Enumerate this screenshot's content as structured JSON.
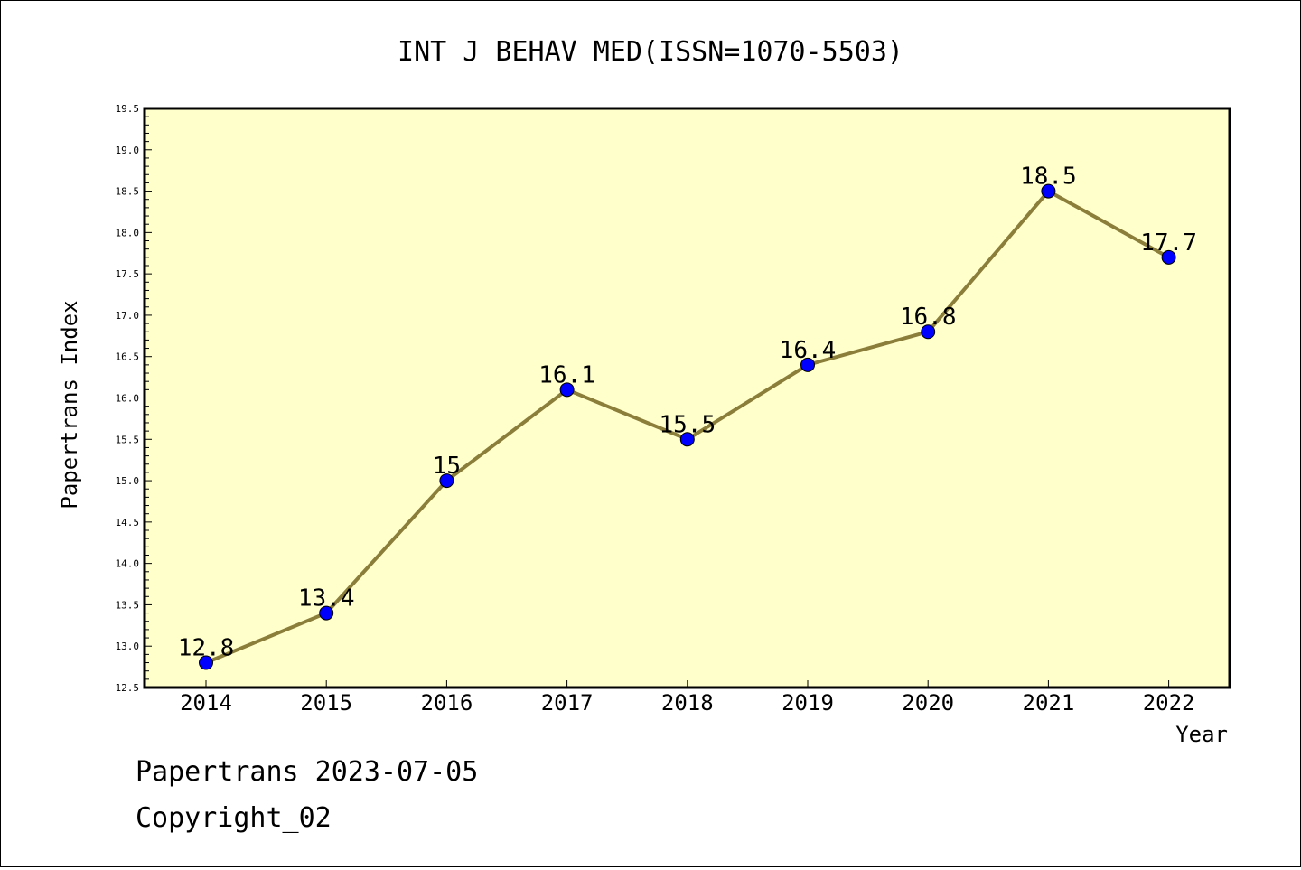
{
  "chart_data": {
    "type": "line",
    "title": "INT J BEHAV MED(ISSN=1070-5503)",
    "xlabel": "Year",
    "ylabel": "Papertrans Index",
    "x": [
      "2014",
      "2015",
      "2016",
      "2017",
      "2018",
      "2019",
      "2020",
      "2021",
      "2022"
    ],
    "series": [
      {
        "values": [
          12.8,
          13.4,
          15.0,
          16.1,
          15.5,
          16.4,
          16.8,
          18.5,
          17.7
        ],
        "labels": [
          "12.8",
          "13.4",
          "15",
          "16.1",
          "15.5",
          "16.4",
          "16.8",
          "18.5",
          "17.7"
        ]
      }
    ],
    "ylim": [
      12.5,
      19.5
    ],
    "y_ticks": [
      "12.5",
      "13.0",
      "13.5",
      "14.0",
      "14.5",
      "15.0",
      "15.5",
      "16.0",
      "16.5",
      "17.0",
      "17.5",
      "18.0",
      "18.5",
      "19.0",
      "19.5"
    ],
    "y_minor_step": 0.1,
    "grid": false,
    "colors": {
      "plot_background": "#ffffcc",
      "line": "#8b7d3a",
      "marker": "#0000ff",
      "axis": "#000000"
    }
  },
  "footer": {
    "date_line": "Papertrans 2023-07-05",
    "copyright_line": "Copyright_02"
  }
}
